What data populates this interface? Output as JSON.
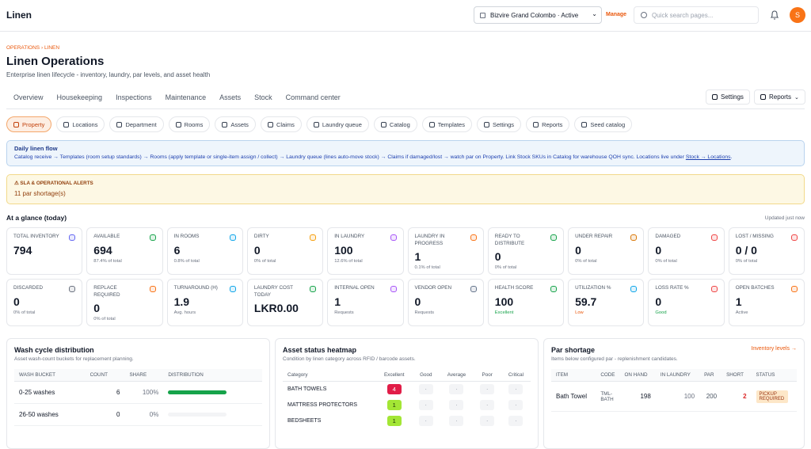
{
  "header": {
    "app_title": "Linen",
    "property_select": "Bizvire Grand Colombo · Active",
    "manage": "Manage",
    "search_placeholder": "Quick search pages...",
    "avatar": "S"
  },
  "breadcrumb": {
    "items": [
      "OPERATIONS",
      "LINEN"
    ],
    "separator": "›"
  },
  "page": {
    "title": "Linen Operations",
    "subtitle": "Enterprise linen lifecycle - inventory, laundry, par levels, and asset health"
  },
  "tabs": [
    "Overview",
    "Housekeeping",
    "Inspections",
    "Maintenance",
    "Assets",
    "Stock",
    "Command center"
  ],
  "tab_actions": [
    "Settings",
    "Reports"
  ],
  "subtabs": [
    "Property",
    "Locations",
    "Department",
    "Rooms",
    "Assets",
    "Claims",
    "Laundry queue",
    "Catalog",
    "Templates",
    "Settings",
    "Reports",
    "Seed catalog"
  ],
  "flow": {
    "title": "Daily linen flow",
    "text": "Catalog receive → Templates (room setup standards) → Rooms (apply template or single-item assign / collect) → Laundry queue (lines auto-move stock) → Claims if damaged/lost → watch par on Property. Link Stock SKUs in Catalog for warehouse QOH sync. Locations live under ",
    "link": "Stock → Locations",
    "end": "."
  },
  "alerts": {
    "title": "SLA & OPERATIONAL ALERTS",
    "text": "11 par shortage(s)"
  },
  "glance": {
    "title": "At a glance (today)",
    "updated": "Updated just now"
  },
  "kpis": [
    {
      "label": "TOTAL INVENTORY",
      "value": "794"
    },
    {
      "label": "AVAILABLE",
      "value": "694",
      "sub": "87.4% of total"
    },
    {
      "label": "IN ROOMS",
      "value": "6",
      "sub": "0.8% of total"
    },
    {
      "label": "DIRTY",
      "value": "0",
      "sub": "0% of total"
    },
    {
      "label": "IN LAUNDRY",
      "value": "100",
      "sub": "12.6% of total"
    },
    {
      "label": "LAUNDRY IN PROGRESS",
      "value": "1",
      "sub": "0.1% of total"
    },
    {
      "label": "READY TO DISTRIBUTE",
      "value": "0",
      "sub": "0% of total"
    },
    {
      "label": "UNDER REPAIR",
      "value": "0",
      "sub": "0% of total"
    },
    {
      "label": "DAMAGED",
      "value": "0",
      "sub": "0% of total"
    },
    {
      "label": "LOST / MISSING",
      "value": "0 / 0",
      "sub": "0% of total"
    },
    {
      "label": "DISCARDED",
      "value": "0",
      "sub": "0% of total"
    },
    {
      "label": "REPLACE REQUIRED",
      "value": "0",
      "sub": "0% of total"
    },
    {
      "label": "TURNAROUND (H)",
      "value": "1.9",
      "sub": "Avg. hours"
    },
    {
      "label": "LAUNDRY COST TODAY",
      "value": "LKR0.00"
    },
    {
      "label": "INTERNAL OPEN",
      "value": "1",
      "sub": "Requests"
    },
    {
      "label": "VENDOR OPEN",
      "value": "0",
      "sub": "Requests"
    },
    {
      "label": "HEALTH SCORE",
      "value": "100",
      "sub": "Excellent",
      "sub_color": "#16a34a"
    },
    {
      "label": "UTILIZATION %",
      "value": "59.7",
      "sub": "Low",
      "sub_color": "#ea580c"
    },
    {
      "label": "LOSS RATE %",
      "value": "0",
      "sub": "Good",
      "sub_color": "#16a34a"
    },
    {
      "label": "OPEN BATCHES",
      "value": "1",
      "sub": "Active"
    }
  ],
  "wash_cycle": {
    "title": "Wash cycle distribution",
    "subtitle": "Asset wash-count buckets for replacement planning.",
    "columns": [
      "WASH BUCKET",
      "COUNT",
      "SHARE",
      "DISTRIBUTION"
    ],
    "rows": [
      {
        "bucket": "0-25 washes",
        "count": 6,
        "share": {
          "value": 100,
          "label": "100%"
        }
      },
      {
        "bucket": "26-50 washes",
        "count": 0,
        "share": {
          "value": 0,
          "label": "0%"
        }
      }
    ]
  },
  "heatmap": {
    "title": "Asset status heatmap",
    "subtitle": "Condition by linen category across RFID / barcode assets.",
    "columns": [
      "Category",
      "Excellent",
      "Good",
      "Average",
      "Poor",
      "Critical"
    ],
    "rows": [
      {
        "category": "BATH TOWELS",
        "cells": [
          4,
          "·",
          "·",
          "·",
          "·"
        ]
      },
      {
        "category": "MATTRESS PROTECTORS",
        "cells": [
          1,
          "·",
          "·",
          "·",
          "·"
        ]
      },
      {
        "category": "BEDSHEETS",
        "cells": [
          1,
          "·",
          "·",
          "·",
          "·"
        ]
      }
    ]
  },
  "par_shortage": {
    "title": "Par shortage",
    "subtitle": "Items below configured par - replenishment candidates.",
    "link": "Inventory levels →",
    "columns": [
      "ITEM",
      "CODE",
      "ON HAND",
      "IN LAUNDRY",
      "PAR",
      "SHORT",
      "STATUS"
    ],
    "rows": [
      [
        "Bath Towel",
        "TML-BATH",
        198,
        100,
        200,
        2,
        "PICKUP REQUIRED"
      ]
    ]
  }
}
